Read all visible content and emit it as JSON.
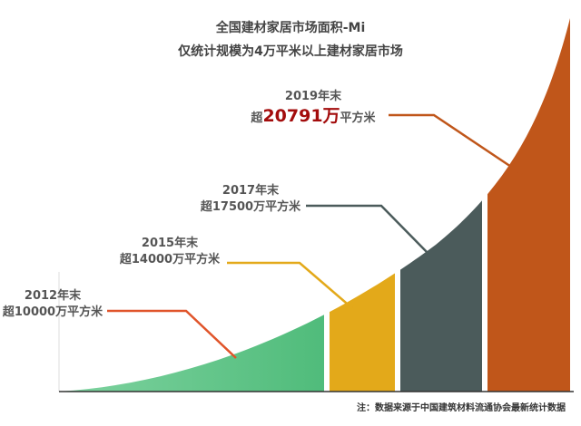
{
  "header": {
    "title": "全国建材家居市场面积-Mi",
    "subtitle": "仅统计规模为4万平米以上建材家居市场"
  },
  "milestones": [
    {
      "year": "2012年末",
      "label": "超10000万平方米"
    },
    {
      "year": "2015年末",
      "label": "超14000万平方米"
    },
    {
      "year": "2017年末",
      "label": "超17500万平方米"
    },
    {
      "year": "2019年末",
      "prefix": "超",
      "highlight": "20791万",
      "suffix": "平方米"
    }
  ],
  "note": "注：数据来源于中国建筑材料流通协会最新统计数据"
}
